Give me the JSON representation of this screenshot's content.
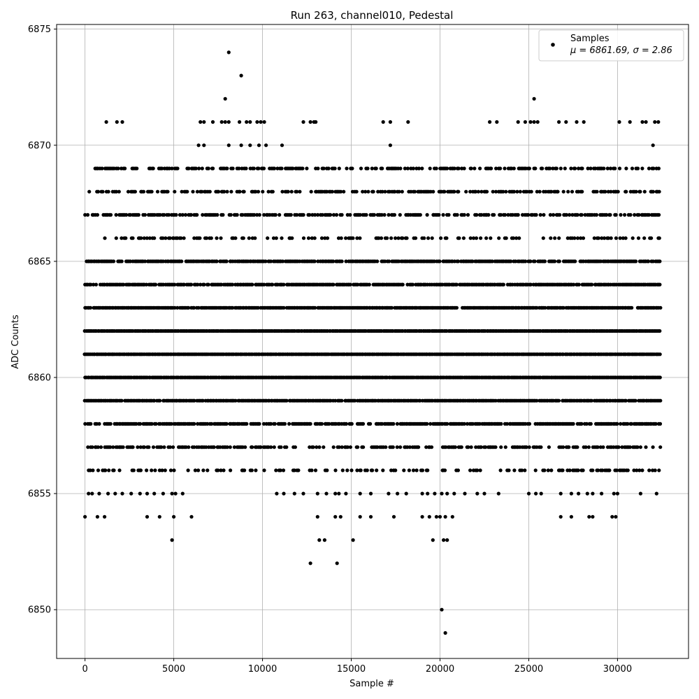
{
  "chart_data": {
    "type": "scatter",
    "title": "Run 263, channel010, Pedestal",
    "xlabel": "Sample #",
    "ylabel": "ADC Counts",
    "xlim": [
      -1600,
      34000
    ],
    "ylim": [
      6847.9,
      6875.2
    ],
    "xticks": [
      0,
      5000,
      10000,
      15000,
      20000,
      25000,
      30000
    ],
    "yticks": [
      6850,
      6855,
      6860,
      6865,
      6870,
      6875
    ],
    "grid": true,
    "legend_position": "top-right",
    "legend": {
      "series_name": "Samples",
      "stats_line": "μ = 6861.69, σ = 2.86"
    },
    "series": [
      {
        "name": "Samples",
        "color": "#000000",
        "marker": "circle",
        "dense_bands": [
          {
            "y": 6856,
            "x_range": [
              200,
              32400
            ],
            "density": 0.35
          },
          {
            "y": 6857,
            "x_range": [
              0,
              32400
            ],
            "density": 0.55
          },
          {
            "y": 6858,
            "x_range": [
              0,
              32400
            ],
            "density": 0.8
          },
          {
            "y": 6859,
            "x_range": [
              0,
              32400
            ],
            "density": 0.95
          },
          {
            "y": 6860,
            "x_range": [
              0,
              32400
            ],
            "density": 1.0
          },
          {
            "y": 6861,
            "x_range": [
              0,
              32400
            ],
            "density": 1.0
          },
          {
            "y": 6862,
            "x_range": [
              0,
              32400
            ],
            "density": 1.0
          },
          {
            "y": 6863,
            "x_range": [
              0,
              32400
            ],
            "density": 0.95
          },
          {
            "y": 6864,
            "x_range": [
              0,
              32400
            ],
            "density": 0.9
          },
          {
            "y": 6865,
            "x_range": [
              0,
              32400
            ],
            "density": 0.85
          },
          {
            "y": 6866,
            "x_range": [
              700,
              32400
            ],
            "density": 0.3
          },
          {
            "y": 6867,
            "x_range": [
              0,
              32400
            ],
            "density": 0.6
          },
          {
            "y": 6868,
            "x_range": [
              100,
              32400
            ],
            "density": 0.55
          },
          {
            "y": 6869,
            "x_range": [
              500,
              32400
            ],
            "density": 0.5
          }
        ],
        "sparse_points": [
          [
            1200,
            6871
          ],
          [
            1800,
            6871
          ],
          [
            2100,
            6871
          ],
          [
            6500,
            6871
          ],
          [
            6700,
            6871
          ],
          [
            7200,
            6871
          ],
          [
            7700,
            6871
          ],
          [
            7900,
            6871
          ],
          [
            8100,
            6871
          ],
          [
            8700,
            6871
          ],
          [
            9100,
            6871
          ],
          [
            9300,
            6871
          ],
          [
            9700,
            6871
          ],
          [
            9900,
            6871
          ],
          [
            10100,
            6871
          ],
          [
            12300,
            6871
          ],
          [
            12700,
            6871
          ],
          [
            12900,
            6871
          ],
          [
            13000,
            6871
          ],
          [
            16800,
            6871
          ],
          [
            17200,
            6871
          ],
          [
            18200,
            6871
          ],
          [
            22800,
            6871
          ],
          [
            23200,
            6871
          ],
          [
            24400,
            6871
          ],
          [
            24800,
            6871
          ],
          [
            25100,
            6871
          ],
          [
            25300,
            6871
          ],
          [
            25500,
            6871
          ],
          [
            26700,
            6871
          ],
          [
            27100,
            6871
          ],
          [
            27700,
            6871
          ],
          [
            28100,
            6871
          ],
          [
            30100,
            6871
          ],
          [
            30700,
            6871
          ],
          [
            31400,
            6871
          ],
          [
            31600,
            6871
          ],
          [
            32100,
            6871
          ],
          [
            32300,
            6871
          ],
          [
            6400,
            6870
          ],
          [
            6700,
            6870
          ],
          [
            8100,
            6870
          ],
          [
            8800,
            6870
          ],
          [
            9300,
            6870
          ],
          [
            9800,
            6870
          ],
          [
            10200,
            6870
          ],
          [
            11100,
            6870
          ],
          [
            17200,
            6870
          ],
          [
            32000,
            6870
          ],
          [
            7900,
            6872
          ],
          [
            25300,
            6872
          ],
          [
            8800,
            6873
          ],
          [
            8100,
            6874
          ],
          [
            200,
            6855
          ],
          [
            400,
            6855
          ],
          [
            800,
            6855
          ],
          [
            1300,
            6855
          ],
          [
            1700,
            6855
          ],
          [
            2100,
            6855
          ],
          [
            2600,
            6855
          ],
          [
            3100,
            6855
          ],
          [
            3500,
            6855
          ],
          [
            3900,
            6855
          ],
          [
            4400,
            6855
          ],
          [
            4900,
            6855
          ],
          [
            5100,
            6855
          ],
          [
            5500,
            6855
          ],
          [
            10800,
            6855
          ],
          [
            11200,
            6855
          ],
          [
            11800,
            6855
          ],
          [
            12300,
            6855
          ],
          [
            13100,
            6855
          ],
          [
            13600,
            6855
          ],
          [
            14100,
            6855
          ],
          [
            14300,
            6855
          ],
          [
            14700,
            6855
          ],
          [
            15500,
            6855
          ],
          [
            16100,
            6855
          ],
          [
            17100,
            6855
          ],
          [
            17600,
            6855
          ],
          [
            18100,
            6855
          ],
          [
            19000,
            6855
          ],
          [
            19300,
            6855
          ],
          [
            19700,
            6855
          ],
          [
            20100,
            6855
          ],
          [
            20400,
            6855
          ],
          [
            20800,
            6855
          ],
          [
            21400,
            6855
          ],
          [
            22100,
            6855
          ],
          [
            22500,
            6855
          ],
          [
            23300,
            6855
          ],
          [
            25000,
            6855
          ],
          [
            25400,
            6855
          ],
          [
            25700,
            6855
          ],
          [
            26800,
            6855
          ],
          [
            27400,
            6855
          ],
          [
            27800,
            6855
          ],
          [
            28300,
            6855
          ],
          [
            28600,
            6855
          ],
          [
            29100,
            6855
          ],
          [
            29800,
            6855
          ],
          [
            30000,
            6855
          ],
          [
            31300,
            6855
          ],
          [
            32200,
            6855
          ],
          [
            0,
            6854
          ],
          [
            700,
            6854
          ],
          [
            1100,
            6854
          ],
          [
            3500,
            6854
          ],
          [
            4200,
            6854
          ],
          [
            5000,
            6854
          ],
          [
            6000,
            6854
          ],
          [
            13100,
            6854
          ],
          [
            14100,
            6854
          ],
          [
            14400,
            6854
          ],
          [
            15500,
            6854
          ],
          [
            16100,
            6854
          ],
          [
            17400,
            6854
          ],
          [
            19000,
            6854
          ],
          [
            19400,
            6854
          ],
          [
            19800,
            6854
          ],
          [
            20000,
            6854
          ],
          [
            20300,
            6854
          ],
          [
            20700,
            6854
          ],
          [
            26800,
            6854
          ],
          [
            27400,
            6854
          ],
          [
            28400,
            6854
          ],
          [
            28600,
            6854
          ],
          [
            29700,
            6854
          ],
          [
            29900,
            6854
          ],
          [
            4900,
            6853
          ],
          [
            13200,
            6853
          ],
          [
            13500,
            6853
          ],
          [
            15100,
            6853
          ],
          [
            19600,
            6853
          ],
          [
            20200,
            6853
          ],
          [
            20400,
            6853
          ],
          [
            12700,
            6852
          ],
          [
            14200,
            6852
          ],
          [
            20100,
            6850
          ],
          [
            20300,
            6849
          ]
        ]
      }
    ]
  }
}
